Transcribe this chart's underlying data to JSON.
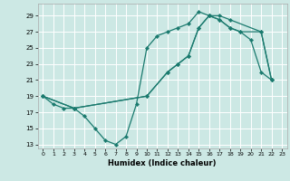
{
  "xlabel": "Humidex (Indice chaleur)",
  "bg_color": "#cce8e4",
  "grid_color": "#ffffff",
  "line_color": "#1a7a6e",
  "xlim": [
    -0.5,
    23.5
  ],
  "ylim": [
    12.5,
    30.5
  ],
  "xticks": [
    0,
    1,
    2,
    3,
    4,
    5,
    6,
    7,
    8,
    9,
    10,
    11,
    12,
    13,
    14,
    15,
    16,
    17,
    18,
    19,
    20,
    21,
    22,
    23
  ],
  "yticks": [
    13,
    15,
    17,
    19,
    21,
    23,
    25,
    27,
    29
  ],
  "line1_x": [
    0,
    1,
    2,
    3,
    4,
    5,
    6,
    7,
    8,
    9,
    10,
    11,
    12,
    13,
    14,
    15,
    16,
    17,
    18,
    19,
    20,
    21,
    22
  ],
  "line1_y": [
    19,
    18,
    17.5,
    17.5,
    16.5,
    15,
    13.5,
    13,
    14,
    18,
    25,
    26.5,
    27,
    27.5,
    28,
    29.5,
    29,
    28.5,
    27.5,
    27,
    26,
    22,
    21
  ],
  "line2_x": [
    0,
    3,
    10,
    12,
    13,
    14,
    15,
    16,
    17,
    18,
    21,
    22
  ],
  "line2_y": [
    19,
    17.5,
    19,
    22,
    23,
    24,
    27.5,
    29,
    29,
    28.5,
    27,
    21
  ],
  "line3_x": [
    0,
    3,
    10,
    12,
    13,
    14,
    15,
    16,
    17,
    18,
    19,
    21,
    22
  ],
  "line3_y": [
    19,
    17.5,
    19,
    22,
    23,
    24,
    27.5,
    29,
    28.5,
    27.5,
    27,
    27,
    21
  ]
}
